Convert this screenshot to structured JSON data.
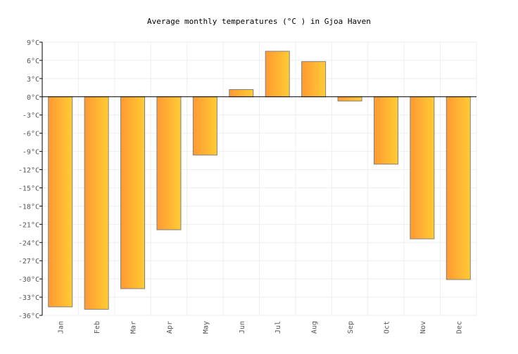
{
  "chart_data": {
    "type": "bar",
    "title": "Average monthly temperatures (°C ) in Gjoa Haven",
    "xlabel": "",
    "ylabel": "",
    "categories": [
      "Jan",
      "Feb",
      "Mar",
      "Apr",
      "May",
      "Jun",
      "Jul",
      "Aug",
      "Sep",
      "Oct",
      "Nov",
      "Dec"
    ],
    "values": [
      -34.6,
      -35.0,
      -31.6,
      -21.9,
      -9.6,
      1.2,
      7.5,
      5.8,
      -0.7,
      -11.1,
      -23.4,
      -30.1
    ],
    "ylim": [
      -36,
      9
    ],
    "yticks": [
      9,
      6,
      3,
      0,
      -3,
      -6,
      -9,
      -12,
      -15,
      -18,
      -21,
      -24,
      -27,
      -30,
      -33,
      -36
    ],
    "ytick_suffix": "°C",
    "grid": true,
    "legend": "none",
    "colors": {
      "bar_start": "#ff9933",
      "bar_end": "#ffcc33",
      "bar_stroke": "#808080",
      "grid": "#eeeeee",
      "axis": "#000000"
    }
  }
}
